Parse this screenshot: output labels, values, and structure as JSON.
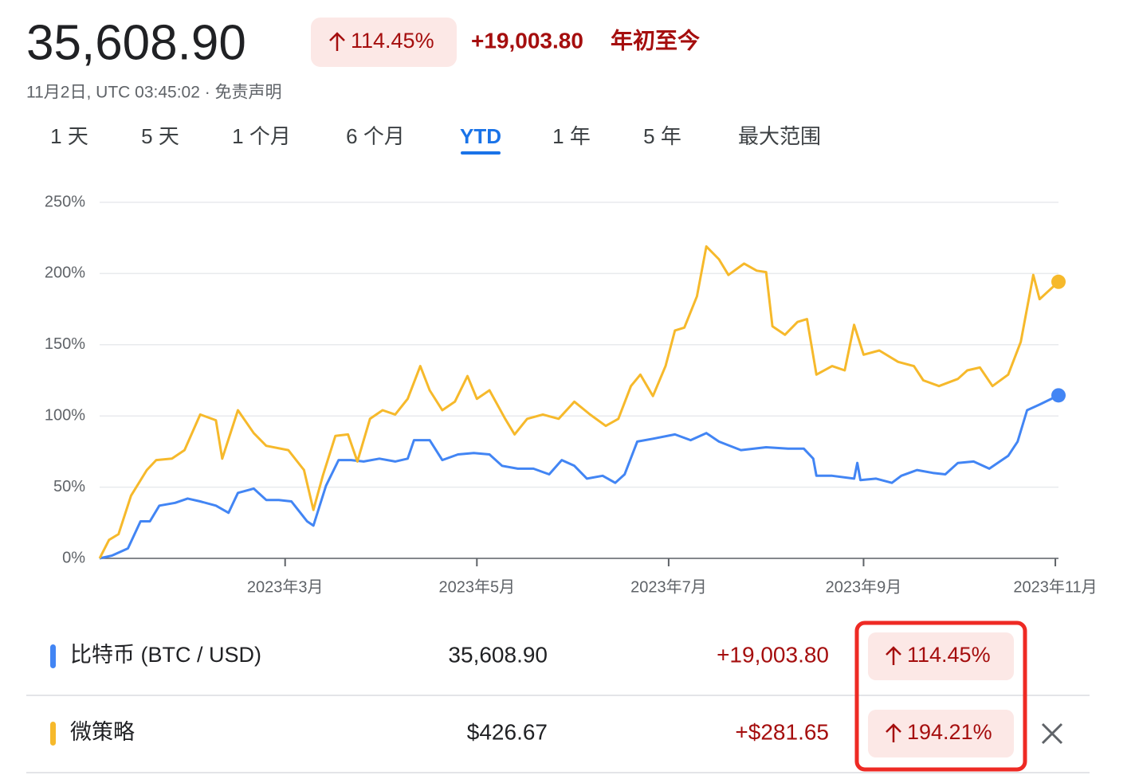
{
  "header": {
    "price": "35,608.90",
    "change_pct": "114.45%",
    "change_abs": "+19,003.80",
    "period_label": "年初至今",
    "timestamp": "11月2日, UTC 03:45:02 · 免责声明"
  },
  "tabs": {
    "items": [
      "1 天",
      "5 天",
      "1 个月",
      "6 个月",
      "YTD",
      "1 年",
      "5 年",
      "最大范围"
    ],
    "active": 4
  },
  "chart_data": {
    "type": "line",
    "xlim": [
      0,
      305
    ],
    "xticks": [
      {
        "value": 59,
        "label": "2023年3月"
      },
      {
        "value": 120,
        "label": "2023年5月"
      },
      {
        "value": 181,
        "label": "2023年7月"
      },
      {
        "value": 243,
        "label": "2023年9月"
      },
      {
        "value": 304,
        "label": "2023年11月"
      }
    ],
    "ylim": [
      0,
      250
    ],
    "yticks": [
      {
        "value": 0,
        "label": "0%"
      },
      {
        "value": 50,
        "label": "50%"
      },
      {
        "value": 100,
        "label": "100%"
      },
      {
        "value": 150,
        "label": "150%"
      },
      {
        "value": 200,
        "label": "200%"
      },
      {
        "value": 250,
        "label": "250%"
      }
    ],
    "grid": true,
    "series": [
      {
        "color": "#4285f4",
        "x": [
          0,
          4,
          9,
          13,
          16,
          19,
          24,
          28,
          32,
          37,
          41,
          44,
          49,
          53,
          57,
          61,
          66,
          68,
          72,
          76,
          80,
          84,
          89,
          94,
          98,
          100,
          105,
          109,
          114,
          119,
          124,
          128,
          133,
          138,
          143,
          147,
          151,
          155,
          160,
          164,
          167,
          171,
          176,
          183,
          188,
          193,
          197,
          204,
          212,
          219,
          224,
          227,
          228,
          233,
          240,
          241,
          242,
          247,
          252,
          255,
          260,
          265,
          269,
          273,
          278,
          283,
          287,
          289,
          292,
          295,
          299,
          305
        ],
        "values": [
          0,
          2,
          7,
          26,
          26,
          37,
          39,
          42,
          40,
          37,
          32,
          46,
          49,
          41,
          41,
          40,
          26,
          23,
          51,
          69,
          69,
          68,
          70,
          68,
          70,
          83,
          83,
          69,
          73,
          74,
          73,
          65,
          63,
          63,
          59,
          69,
          65,
          56,
          58,
          53,
          59,
          82,
          84,
          87,
          83,
          88,
          82,
          76,
          78,
          77,
          77,
          70,
          58,
          58,
          56,
          67,
          55,
          56,
          53,
          58,
          62,
          60,
          59,
          67,
          68,
          63,
          69,
          72,
          82,
          104,
          108,
          114.45
        ]
      },
      {
        "color": "#f6b92b",
        "x": [
          0,
          3,
          6,
          10,
          15,
          18,
          23,
          27,
          32,
          37,
          39,
          44,
          49,
          53,
          60,
          65,
          68,
          71,
          75,
          79,
          82,
          86,
          90,
          94,
          98,
          102,
          105,
          109,
          113,
          117,
          120,
          124,
          129,
          132,
          136,
          141,
          146,
          151,
          156,
          161,
          165,
          169,
          172,
          176,
          180,
          183,
          186,
          190,
          193,
          197,
          200,
          205,
          209,
          212,
          214,
          218,
          222,
          225,
          228,
          233,
          237,
          240,
          243,
          248,
          254,
          259,
          262,
          267,
          273,
          276,
          280,
          284,
          289,
          293,
          297,
          299,
          305
        ],
        "values": [
          0,
          13,
          17,
          44,
          62,
          69,
          70,
          76,
          101,
          97,
          70,
          104,
          88,
          79,
          76,
          62,
          34,
          58,
          86,
          87,
          68,
          98,
          104,
          101,
          112,
          135,
          118,
          104,
          110,
          128,
          112,
          118,
          98,
          87,
          98,
          101,
          98,
          110,
          101,
          93,
          98,
          121,
          129,
          114,
          135,
          160,
          162,
          184,
          219,
          210,
          199,
          207,
          202,
          201,
          163,
          157,
          166,
          168,
          129,
          135,
          132,
          164,
          143,
          146,
          138,
          135,
          125,
          121,
          126,
          132,
          134,
          121,
          129,
          152,
          199,
          182,
          194.21
        ]
      }
    ]
  },
  "table": {
    "rows": [
      {
        "name": "比特币 (BTC / USD)",
        "price": "35,608.90",
        "change": "+19,003.80",
        "change_pct": "114.45%"
      },
      {
        "name": "微策略",
        "price": "$426.67",
        "change": "+$281.65",
        "change_pct": "194.21%"
      }
    ]
  }
}
